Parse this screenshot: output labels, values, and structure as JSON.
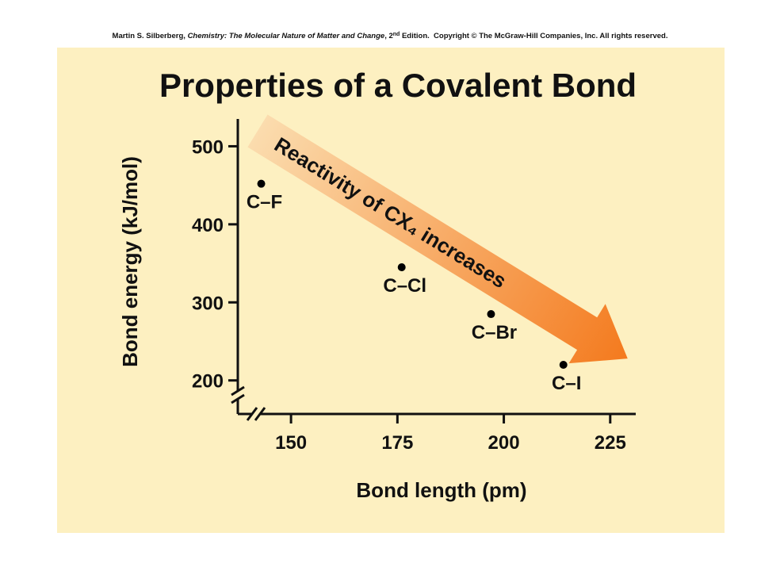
{
  "chart_data": {
    "type": "scatter",
    "credit": [
      "Martin S. Silberberg, ",
      "Chemistry: The Molecular Nature of Matter and Change",
      ", 2",
      "nd",
      " Edition.  Copyright © The McGraw-Hill Companies, Inc. All rights reserved."
    ],
    "title": "Properties of a Covalent Bond",
    "x_label": "Bond length (pm)",
    "y_label": "Bond energy (kJ/mol)",
    "annotation": "Reactivity of CX₄ increases",
    "x": [
      143,
      176,
      197,
      214
    ],
    "values": [
      452,
      345,
      285,
      220
    ],
    "point_labels": [
      "C–F",
      "C–Cl",
      "C–Br",
      "C–I"
    ],
    "color": "#000000",
    "xlim": [
      137.5,
      231
    ],
    "ylim": [
      157,
      535
    ],
    "xticks": [
      150,
      175,
      200,
      225
    ],
    "yticks": [
      200,
      300,
      400,
      500
    ]
  }
}
